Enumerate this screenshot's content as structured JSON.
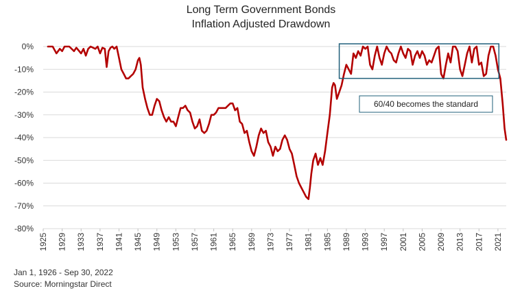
{
  "title_line1": "Long Term Government Bonds",
  "title_line2": "Inflation Adjusted Drawdown",
  "footer": {
    "date_range": "Jan 1, 1926 - Sep 30, 2022",
    "source": "Source: Morningstar Direct"
  },
  "colors": {
    "line": "#b30000",
    "box": "#1f5f7a",
    "grid": "#d9d9d9"
  },
  "annotation": {
    "label": "60/40 becomes the standard",
    "x_range": [
      1987.5,
      2021.2
    ],
    "y_range": [
      -0.14,
      0.0
    ]
  },
  "chart_data": {
    "type": "line",
    "title": "Long Term Government Bonds Inflation Adjusted Drawdown",
    "ylim": [
      -0.8,
      0.0
    ],
    "xlim": [
      1925,
      2022.75
    ],
    "grid": true,
    "y_ticks": [
      {
        "v": 0.0,
        "label": "0%"
      },
      {
        "v": -0.1,
        "label": "-10%"
      },
      {
        "v": -0.2,
        "label": "-20%"
      },
      {
        "v": -0.3,
        "label": "-30%"
      },
      {
        "v": -0.4,
        "label": "-40%"
      },
      {
        "v": -0.5,
        "label": "-50%"
      },
      {
        "v": -0.6,
        "label": "-60%"
      },
      {
        "v": -0.7,
        "label": "-70%"
      },
      {
        "v": -0.8,
        "label": "-80%"
      }
    ],
    "x_ticks": [
      "1925",
      "1929",
      "1933",
      "1937",
      "1941",
      "1945",
      "1949",
      "1953",
      "1957",
      "1961",
      "1965",
      "1969",
      "1973",
      "1977",
      "1981",
      "1985",
      "1989",
      "1993",
      "1997",
      "2001",
      "2005",
      "2009",
      "2013",
      "2017",
      "2021"
    ],
    "series": [
      {
        "values": [
          [
            1926.0,
            0.0
          ],
          [
            1927.0,
            0.0
          ],
          [
            1927.8,
            -0.03
          ],
          [
            1928.5,
            -0.01
          ],
          [
            1929.0,
            -0.02
          ],
          [
            1929.5,
            0.0
          ],
          [
            1930.5,
            0.0
          ],
          [
            1931.5,
            -0.02
          ],
          [
            1932.0,
            -0.005
          ],
          [
            1933.0,
            -0.03
          ],
          [
            1933.5,
            -0.01
          ],
          [
            1934.0,
            -0.04
          ],
          [
            1934.5,
            -0.01
          ],
          [
            1935.0,
            0.0
          ],
          [
            1936.0,
            -0.01
          ],
          [
            1936.5,
            0.0
          ],
          [
            1937.0,
            -0.03
          ],
          [
            1937.5,
            -0.005
          ],
          [
            1938.0,
            -0.01
          ],
          [
            1938.4,
            -0.09
          ],
          [
            1938.8,
            -0.02
          ],
          [
            1939.2,
            -0.005
          ],
          [
            1939.6,
            0.0
          ],
          [
            1940.0,
            -0.01
          ],
          [
            1940.5,
            0.0
          ],
          [
            1941.0,
            -0.05
          ],
          [
            1941.5,
            -0.1
          ],
          [
            1942.0,
            -0.12
          ],
          [
            1942.5,
            -0.14
          ],
          [
            1943.0,
            -0.14
          ],
          [
            1943.5,
            -0.13
          ],
          [
            1944.0,
            -0.12
          ],
          [
            1944.5,
            -0.1
          ],
          [
            1945.0,
            -0.06
          ],
          [
            1945.3,
            -0.05
          ],
          [
            1945.6,
            -0.08
          ],
          [
            1946.0,
            -0.18
          ],
          [
            1946.5,
            -0.23
          ],
          [
            1947.0,
            -0.27
          ],
          [
            1947.5,
            -0.3
          ],
          [
            1948.0,
            -0.3
          ],
          [
            1948.5,
            -0.26
          ],
          [
            1949.0,
            -0.23
          ],
          [
            1949.5,
            -0.24
          ],
          [
            1950.0,
            -0.28
          ],
          [
            1950.5,
            -0.31
          ],
          [
            1951.0,
            -0.33
          ],
          [
            1951.5,
            -0.31
          ],
          [
            1952.0,
            -0.33
          ],
          [
            1952.5,
            -0.33
          ],
          [
            1953.0,
            -0.35
          ],
          [
            1953.5,
            -0.31
          ],
          [
            1954.0,
            -0.27
          ],
          [
            1954.5,
            -0.27
          ],
          [
            1955.0,
            -0.26
          ],
          [
            1955.5,
            -0.28
          ],
          [
            1956.0,
            -0.29
          ],
          [
            1956.5,
            -0.33
          ],
          [
            1957.0,
            -0.36
          ],
          [
            1957.5,
            -0.35
          ],
          [
            1958.0,
            -0.32
          ],
          [
            1958.5,
            -0.37
          ],
          [
            1959.0,
            -0.38
          ],
          [
            1959.5,
            -0.37
          ],
          [
            1960.0,
            -0.34
          ],
          [
            1960.5,
            -0.3
          ],
          [
            1961.0,
            -0.3
          ],
          [
            1961.5,
            -0.29
          ],
          [
            1962.0,
            -0.27
          ],
          [
            1962.5,
            -0.27
          ],
          [
            1963.0,
            -0.27
          ],
          [
            1963.5,
            -0.27
          ],
          [
            1964.0,
            -0.26
          ],
          [
            1964.5,
            -0.25
          ],
          [
            1965.0,
            -0.25
          ],
          [
            1965.5,
            -0.28
          ],
          [
            1966.0,
            -0.27
          ],
          [
            1966.5,
            -0.33
          ],
          [
            1967.0,
            -0.34
          ],
          [
            1967.5,
            -0.38
          ],
          [
            1968.0,
            -0.37
          ],
          [
            1968.5,
            -0.42
          ],
          [
            1969.0,
            -0.46
          ],
          [
            1969.5,
            -0.48
          ],
          [
            1970.0,
            -0.44
          ],
          [
            1970.5,
            -0.39
          ],
          [
            1971.0,
            -0.36
          ],
          [
            1971.5,
            -0.38
          ],
          [
            1972.0,
            -0.37
          ],
          [
            1972.5,
            -0.42
          ],
          [
            1973.0,
            -0.44
          ],
          [
            1973.5,
            -0.48
          ],
          [
            1974.0,
            -0.44
          ],
          [
            1974.5,
            -0.46
          ],
          [
            1975.0,
            -0.45
          ],
          [
            1975.5,
            -0.41
          ],
          [
            1976.0,
            -0.39
          ],
          [
            1976.5,
            -0.41
          ],
          [
            1977.0,
            -0.45
          ],
          [
            1977.5,
            -0.47
          ],
          [
            1978.0,
            -0.52
          ],
          [
            1978.5,
            -0.57
          ],
          [
            1979.0,
            -0.6
          ],
          [
            1979.5,
            -0.62
          ],
          [
            1980.0,
            -0.64
          ],
          [
            1980.5,
            -0.66
          ],
          [
            1981.0,
            -0.67
          ],
          [
            1981.3,
            -0.62
          ],
          [
            1981.6,
            -0.56
          ],
          [
            1982.0,
            -0.5
          ],
          [
            1982.5,
            -0.47
          ],
          [
            1983.0,
            -0.52
          ],
          [
            1983.5,
            -0.49
          ],
          [
            1984.0,
            -0.52
          ],
          [
            1984.5,
            -0.46
          ],
          [
            1985.0,
            -0.38
          ],
          [
            1985.5,
            -0.3
          ],
          [
            1986.0,
            -0.18
          ],
          [
            1986.3,
            -0.16
          ],
          [
            1986.6,
            -0.17
          ],
          [
            1987.0,
            -0.23
          ],
          [
            1987.5,
            -0.2
          ],
          [
            1988.0,
            -0.17
          ],
          [
            1988.5,
            -0.12
          ],
          [
            1989.0,
            -0.08
          ],
          [
            1989.5,
            -0.1
          ],
          [
            1990.0,
            -0.12
          ],
          [
            1990.5,
            -0.03
          ],
          [
            1991.0,
            -0.05
          ],
          [
            1991.5,
            -0.02
          ],
          [
            1992.0,
            -0.04
          ],
          [
            1992.5,
            0.0
          ],
          [
            1993.0,
            -0.01
          ],
          [
            1993.5,
            0.0
          ],
          [
            1994.0,
            -0.08
          ],
          [
            1994.5,
            -0.1
          ],
          [
            1995.0,
            -0.04
          ],
          [
            1995.5,
            0.0
          ],
          [
            1996.0,
            -0.05
          ],
          [
            1996.5,
            -0.08
          ],
          [
            1997.0,
            -0.03
          ],
          [
            1997.5,
            0.0
          ],
          [
            1998.0,
            -0.02
          ],
          [
            1998.5,
            -0.03
          ],
          [
            1999.0,
            -0.06
          ],
          [
            1999.5,
            -0.07
          ],
          [
            2000.0,
            -0.03
          ],
          [
            2000.5,
            0.0
          ],
          [
            2001.0,
            -0.03
          ],
          [
            2001.5,
            -0.05
          ],
          [
            2002.0,
            -0.01
          ],
          [
            2002.5,
            -0.02
          ],
          [
            2003.0,
            -0.08
          ],
          [
            2003.5,
            -0.04
          ],
          [
            2004.0,
            -0.02
          ],
          [
            2004.5,
            -0.05
          ],
          [
            2005.0,
            -0.02
          ],
          [
            2005.5,
            -0.04
          ],
          [
            2006.0,
            -0.08
          ],
          [
            2006.5,
            -0.06
          ],
          [
            2007.0,
            -0.07
          ],
          [
            2007.5,
            -0.04
          ],
          [
            2008.0,
            -0.01
          ],
          [
            2008.5,
            0.0
          ],
          [
            2009.0,
            -0.12
          ],
          [
            2009.5,
            -0.14
          ],
          [
            2010.0,
            -0.08
          ],
          [
            2010.5,
            -0.03
          ],
          [
            2011.0,
            -0.07
          ],
          [
            2011.5,
            0.0
          ],
          [
            2012.0,
            0.0
          ],
          [
            2012.5,
            -0.02
          ],
          [
            2013.0,
            -0.1
          ],
          [
            2013.5,
            -0.13
          ],
          [
            2014.0,
            -0.08
          ],
          [
            2014.5,
            -0.03
          ],
          [
            2015.0,
            0.0
          ],
          [
            2015.5,
            -0.07
          ],
          [
            2016.0,
            -0.01
          ],
          [
            2016.5,
            0.0
          ],
          [
            2017.0,
            -0.08
          ],
          [
            2017.5,
            -0.07
          ],
          [
            2018.0,
            -0.13
          ],
          [
            2018.5,
            -0.12
          ],
          [
            2019.0,
            -0.04
          ],
          [
            2019.5,
            0.0
          ],
          [
            2020.0,
            0.0
          ],
          [
            2020.5,
            -0.04
          ],
          [
            2021.0,
            -0.1
          ],
          [
            2021.5,
            -0.14
          ],
          [
            2022.0,
            -0.25
          ],
          [
            2022.4,
            -0.36
          ],
          [
            2022.75,
            -0.41
          ]
        ]
      }
    ]
  }
}
